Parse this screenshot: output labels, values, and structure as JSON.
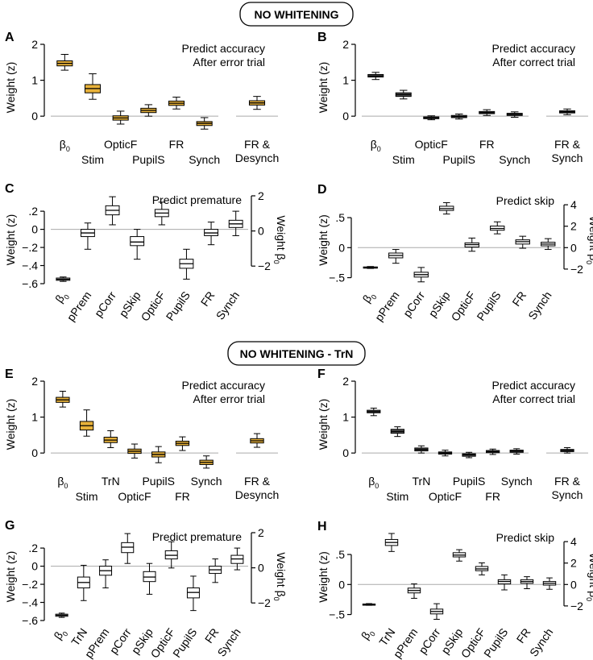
{
  "section_titles": [
    "NO WHITENING",
    "NO WHITENING - TrN"
  ],
  "colors": {
    "accuracy_error_fill": "#e8b23a",
    "accuracy_correct_fill": "#555555",
    "premature_fill": "#ffffff",
    "skip_fill": "#ffffff",
    "axis": "#000000",
    "zero_line": "#aaaaaa"
  },
  "chart_data": [
    {
      "id": "A",
      "panel_label": "A",
      "type": "boxplot",
      "title_lines": [
        "Predict accuracy",
        "After error trial"
      ],
      "ylabel": "Weight (z)",
      "ylim": [
        -0.4,
        2.0
      ],
      "yticks": [
        0,
        1,
        2
      ],
      "fill": "accuracy_error_fill",
      "categories": [
        "β0",
        "Stim",
        "OpticF",
        "PupilS",
        "FR",
        "Synch"
      ],
      "extra_category": [
        "FR &",
        "Desynch"
      ],
      "boxes": [
        {
          "median": 1.47,
          "q1": 1.4,
          "q3": 1.54,
          "lo": 1.28,
          "hi": 1.72
        },
        {
          "median": 0.77,
          "q1": 0.65,
          "q3": 0.88,
          "lo": 0.47,
          "hi": 1.18
        },
        {
          "median": -0.05,
          "q1": -0.11,
          "q3": 0.01,
          "lo": -0.22,
          "hi": 0.14
        },
        {
          "median": 0.16,
          "q1": 0.1,
          "q3": 0.22,
          "lo": 0.0,
          "hi": 0.32
        },
        {
          "median": 0.36,
          "q1": 0.3,
          "q3": 0.42,
          "lo": 0.2,
          "hi": 0.53
        },
        {
          "median": -0.2,
          "q1": -0.26,
          "q3": -0.15,
          "lo": -0.36,
          "hi": -0.04
        }
      ],
      "extra_box": {
        "median": 0.37,
        "q1": 0.31,
        "q3": 0.43,
        "lo": 0.19,
        "hi": 0.55
      }
    },
    {
      "id": "B",
      "panel_label": "B",
      "type": "boxplot",
      "title_lines": [
        "Predict accuracy",
        "After correct trial"
      ],
      "ylabel": "Weight (z)",
      "ylim": [
        -0.4,
        2.0
      ],
      "yticks": [
        0,
        1,
        2
      ],
      "fill": "accuracy_correct_fill",
      "categories": [
        "β0",
        "Stim",
        "OpticF",
        "PupilS",
        "FR",
        "Synch"
      ],
      "extra_category": [
        "FR &",
        "Synch"
      ],
      "boxes": [
        {
          "median": 1.12,
          "q1": 1.09,
          "q3": 1.16,
          "lo": 1.02,
          "hi": 1.22
        },
        {
          "median": 0.6,
          "q1": 0.55,
          "q3": 0.65,
          "lo": 0.48,
          "hi": 0.72
        },
        {
          "median": -0.05,
          "q1": -0.07,
          "q3": -0.02,
          "lo": -0.1,
          "hi": 0.01
        },
        {
          "median": -0.01,
          "q1": -0.04,
          "q3": 0.02,
          "lo": -0.08,
          "hi": 0.06
        },
        {
          "median": 0.1,
          "q1": 0.07,
          "q3": 0.13,
          "lo": 0.02,
          "hi": 0.18
        },
        {
          "median": 0.05,
          "q1": 0.02,
          "q3": 0.08,
          "lo": -0.03,
          "hi": 0.12
        }
      ],
      "extra_box": {
        "median": 0.12,
        "q1": 0.09,
        "q3": 0.15,
        "lo": 0.04,
        "hi": 0.2
      }
    },
    {
      "id": "C",
      "panel_label": "C",
      "type": "boxplot",
      "title_lines": [
        "Predict premature"
      ],
      "ylabel": "Weight (z)",
      "ylabel_right": "Weight β0",
      "ylim": [
        -0.6,
        0.37
      ],
      "yticks": [
        -0.6,
        -0.4,
        -0.2,
        0,
        0.2
      ],
      "ylim_right": [
        -3.0,
        2.0
      ],
      "yticks_right": [
        -2,
        0,
        2
      ],
      "fill": "premature_fill",
      "categories": [
        "β0",
        "pPrem",
        "pCorr",
        "pSkip",
        "OpticF",
        "PupilS",
        "FR",
        "Synch"
      ],
      "first_box_axis": "right",
      "boxes": [
        {
          "median": -2.75,
          "q1": -2.81,
          "q3": -2.68,
          "lo": -2.87,
          "hi": -2.62
        },
        {
          "median": -0.04,
          "q1": -0.08,
          "q3": 0.0,
          "lo": -0.22,
          "hi": 0.07
        },
        {
          "median": 0.21,
          "q1": 0.16,
          "q3": 0.26,
          "lo": 0.05,
          "hi": 0.36
        },
        {
          "median": -0.14,
          "q1": -0.18,
          "q3": -0.08,
          "lo": -0.33,
          "hi": 0.0
        },
        {
          "median": 0.18,
          "q1": 0.14,
          "q3": 0.22,
          "lo": 0.05,
          "hi": 0.3
        },
        {
          "median": -0.38,
          "q1": -0.43,
          "q3": -0.33,
          "lo": -0.55,
          "hi": -0.22
        },
        {
          "median": -0.04,
          "q1": -0.07,
          "q3": 0.0,
          "lo": -0.17,
          "hi": 0.08
        },
        {
          "median": 0.06,
          "q1": 0.02,
          "q3": 0.1,
          "lo": -0.07,
          "hi": 0.2
        }
      ]
    },
    {
      "id": "D",
      "panel_label": "D",
      "type": "boxplot",
      "title_lines": [
        "Predict skip"
      ],
      "ylabel": "Weight (z)",
      "ylabel_right": "Weight β0",
      "ylim": [
        -0.6,
        0.85
      ],
      "yticks": [
        -0.5,
        0,
        0.5
      ],
      "ylim_right": [
        -3.36,
        4.76
      ],
      "yticks_right": [
        -2,
        0,
        2,
        4
      ],
      "fill": "skip_fill",
      "categories": [
        "β0",
        "pPrem",
        "pCorr",
        "pSkip",
        "OpticF",
        "PupilS",
        "FR",
        "Synch"
      ],
      "first_box_axis": "right",
      "boxes": [
        {
          "median": -1.85,
          "q1": -1.9,
          "q3": -1.8,
          "lo": -1.94,
          "hi": -1.76
        },
        {
          "median": -0.13,
          "q1": -0.17,
          "q3": -0.09,
          "lo": -0.26,
          "hi": -0.03
        },
        {
          "median": -0.45,
          "q1": -0.49,
          "q3": -0.41,
          "lo": -0.57,
          "hi": -0.33
        },
        {
          "median": 0.65,
          "q1": 0.62,
          "q3": 0.69,
          "lo": 0.56,
          "hi": 0.75
        },
        {
          "median": 0.05,
          "q1": 0.01,
          "q3": 0.08,
          "lo": -0.06,
          "hi": 0.16
        },
        {
          "median": 0.32,
          "q1": 0.29,
          "q3": 0.36,
          "lo": 0.23,
          "hi": 0.43
        },
        {
          "median": 0.1,
          "q1": 0.06,
          "q3": 0.13,
          "lo": -0.01,
          "hi": 0.19
        },
        {
          "median": 0.06,
          "q1": 0.03,
          "q3": 0.09,
          "lo": -0.03,
          "hi": 0.15
        }
      ]
    },
    {
      "id": "E",
      "panel_label": "E",
      "type": "boxplot",
      "title_lines": [
        "Predict accuracy",
        "After error trial"
      ],
      "ylabel": "Weight (z)",
      "ylim": [
        -0.4,
        2.0
      ],
      "yticks": [
        0,
        1,
        2
      ],
      "fill": "accuracy_error_fill",
      "categories": [
        "β0",
        "Stim",
        "TrN",
        "OpticF",
        "PupilS",
        "FR",
        "Synch"
      ],
      "extra_category": [
        "FR &",
        "Desynch"
      ],
      "boxes": [
        {
          "median": 1.48,
          "q1": 1.41,
          "q3": 1.55,
          "lo": 1.28,
          "hi": 1.72
        },
        {
          "median": 0.76,
          "q1": 0.64,
          "q3": 0.88,
          "lo": 0.47,
          "hi": 1.2
        },
        {
          "median": 0.36,
          "q1": 0.29,
          "q3": 0.44,
          "lo": 0.15,
          "hi": 0.62
        },
        {
          "median": 0.05,
          "q1": -0.01,
          "q3": 0.11,
          "lo": -0.14,
          "hi": 0.25
        },
        {
          "median": -0.04,
          "q1": -0.11,
          "q3": 0.03,
          "lo": -0.27,
          "hi": 0.18
        },
        {
          "median": 0.27,
          "q1": 0.21,
          "q3": 0.33,
          "lo": 0.07,
          "hi": 0.45
        },
        {
          "median": -0.26,
          "q1": -0.32,
          "q3": -0.2,
          "lo": -0.42,
          "hi": -0.08
        }
      ],
      "extra_box": {
        "median": 0.34,
        "q1": 0.28,
        "q3": 0.4,
        "lo": 0.16,
        "hi": 0.54
      }
    },
    {
      "id": "F",
      "panel_label": "F",
      "type": "boxplot",
      "title_lines": [
        "Predict accuracy",
        "After correct trial"
      ],
      "ylabel": "Weight (z)",
      "ylim": [
        -0.4,
        2.0
      ],
      "yticks": [
        0,
        1,
        2
      ],
      "fill": "accuracy_correct_fill",
      "categories": [
        "β0",
        "Stim",
        "TrN",
        "OpticF",
        "PupilS",
        "FR",
        "Synch"
      ],
      "extra_category": [
        "FR &",
        "Synch"
      ],
      "boxes": [
        {
          "median": 1.15,
          "q1": 1.12,
          "q3": 1.19,
          "lo": 1.04,
          "hi": 1.25
        },
        {
          "median": 0.6,
          "q1": 0.55,
          "q3": 0.66,
          "lo": 0.46,
          "hi": 0.73
        },
        {
          "median": 0.1,
          "q1": 0.06,
          "q3": 0.14,
          "lo": 0.0,
          "hi": 0.2
        },
        {
          "median": 0.0,
          "q1": -0.03,
          "q3": 0.03,
          "lo": -0.08,
          "hi": 0.08
        },
        {
          "median": -0.05,
          "q1": -0.09,
          "q3": -0.02,
          "lo": -0.13,
          "hi": 0.02
        },
        {
          "median": 0.04,
          "q1": 0.01,
          "q3": 0.07,
          "lo": -0.04,
          "hi": 0.11
        },
        {
          "median": 0.05,
          "q1": 0.02,
          "q3": 0.08,
          "lo": -0.03,
          "hi": 0.12
        }
      ],
      "extra_box": {
        "median": 0.07,
        "q1": 0.04,
        "q3": 0.1,
        "lo": 0.0,
        "hi": 0.15
      }
    },
    {
      "id": "G",
      "panel_label": "G",
      "type": "boxplot",
      "title_lines": [
        "Predict premature"
      ],
      "ylabel": "Weight (z)",
      "ylabel_right": "Weight β0",
      "ylim": [
        -0.6,
        0.37
      ],
      "yticks": [
        -0.6,
        -0.4,
        -0.2,
        0,
        0.2
      ],
      "ylim_right": [
        -3.0,
        2.0
      ],
      "yticks_right": [
        -2,
        0,
        2
      ],
      "fill": "premature_fill",
      "categories": [
        "β0",
        "TrN",
        "pPrem",
        "pCorr",
        "pSkip",
        "OpticF",
        "PupilS",
        "FR",
        "Synch"
      ],
      "first_box_axis": "right",
      "boxes": [
        {
          "median": -2.7,
          "q1": -2.76,
          "q3": -2.64,
          "lo": -2.82,
          "hi": -2.58
        },
        {
          "median": -0.18,
          "q1": -0.24,
          "q3": -0.12,
          "lo": -0.38,
          "hi": 0.01
        },
        {
          "median": -0.05,
          "q1": -0.1,
          "q3": 0.0,
          "lo": -0.24,
          "hi": 0.07
        },
        {
          "median": 0.21,
          "q1": 0.15,
          "q3": 0.26,
          "lo": 0.03,
          "hi": 0.36
        },
        {
          "median": -0.12,
          "q1": -0.17,
          "q3": -0.06,
          "lo": -0.31,
          "hi": 0.03
        },
        {
          "median": 0.12,
          "q1": 0.08,
          "q3": 0.17,
          "lo": -0.02,
          "hi": 0.27
        },
        {
          "median": -0.29,
          "q1": -0.35,
          "q3": -0.24,
          "lo": -0.49,
          "hi": -0.11
        },
        {
          "median": -0.04,
          "q1": -0.08,
          "q3": 0.0,
          "lo": -0.18,
          "hi": 0.08
        },
        {
          "median": 0.08,
          "q1": 0.03,
          "q3": 0.12,
          "lo": -0.04,
          "hi": 0.2
        }
      ]
    },
    {
      "id": "H",
      "panel_label": "H",
      "type": "boxplot",
      "title_lines": [
        "Predict skip"
      ],
      "ylabel": "Weight (z)",
      "ylabel_right": "Weight β0",
      "ylim": [
        -0.6,
        0.85
      ],
      "yticks": [
        -0.5,
        0,
        0.5
      ],
      "ylim_right": [
        -3.36,
        4.76
      ],
      "yticks_right": [
        -2,
        0,
        2,
        4
      ],
      "fill": "skip_fill",
      "categories": [
        "β0",
        "TrN",
        "pPrem",
        "pCorr",
        "pSkip",
        "OpticF",
        "PupilS",
        "FR",
        "Synch"
      ],
      "first_box_axis": "right",
      "boxes": [
        {
          "median": -1.86,
          "q1": -1.9,
          "q3": -1.82,
          "lo": -1.94,
          "hi": -1.78
        },
        {
          "median": 0.7,
          "q1": 0.65,
          "q3": 0.75,
          "lo": 0.55,
          "hi": 0.85
        },
        {
          "median": -0.1,
          "q1": -0.14,
          "q3": -0.06,
          "lo": -0.23,
          "hi": 0.01
        },
        {
          "median": -0.45,
          "q1": -0.49,
          "q3": -0.41,
          "lo": -0.58,
          "hi": -0.32
        },
        {
          "median": 0.49,
          "q1": 0.46,
          "q3": 0.53,
          "lo": 0.39,
          "hi": 0.58
        },
        {
          "median": 0.26,
          "q1": 0.23,
          "q3": 0.3,
          "lo": 0.16,
          "hi": 0.36
        },
        {
          "median": 0.05,
          "q1": 0.01,
          "q3": 0.08,
          "lo": -0.09,
          "hi": 0.16
        },
        {
          "median": 0.05,
          "q1": 0.02,
          "q3": 0.08,
          "lo": -0.07,
          "hi": 0.13
        },
        {
          "median": 0.02,
          "q1": -0.01,
          "q3": 0.05,
          "lo": -0.08,
          "hi": 0.11
        }
      ]
    }
  ]
}
